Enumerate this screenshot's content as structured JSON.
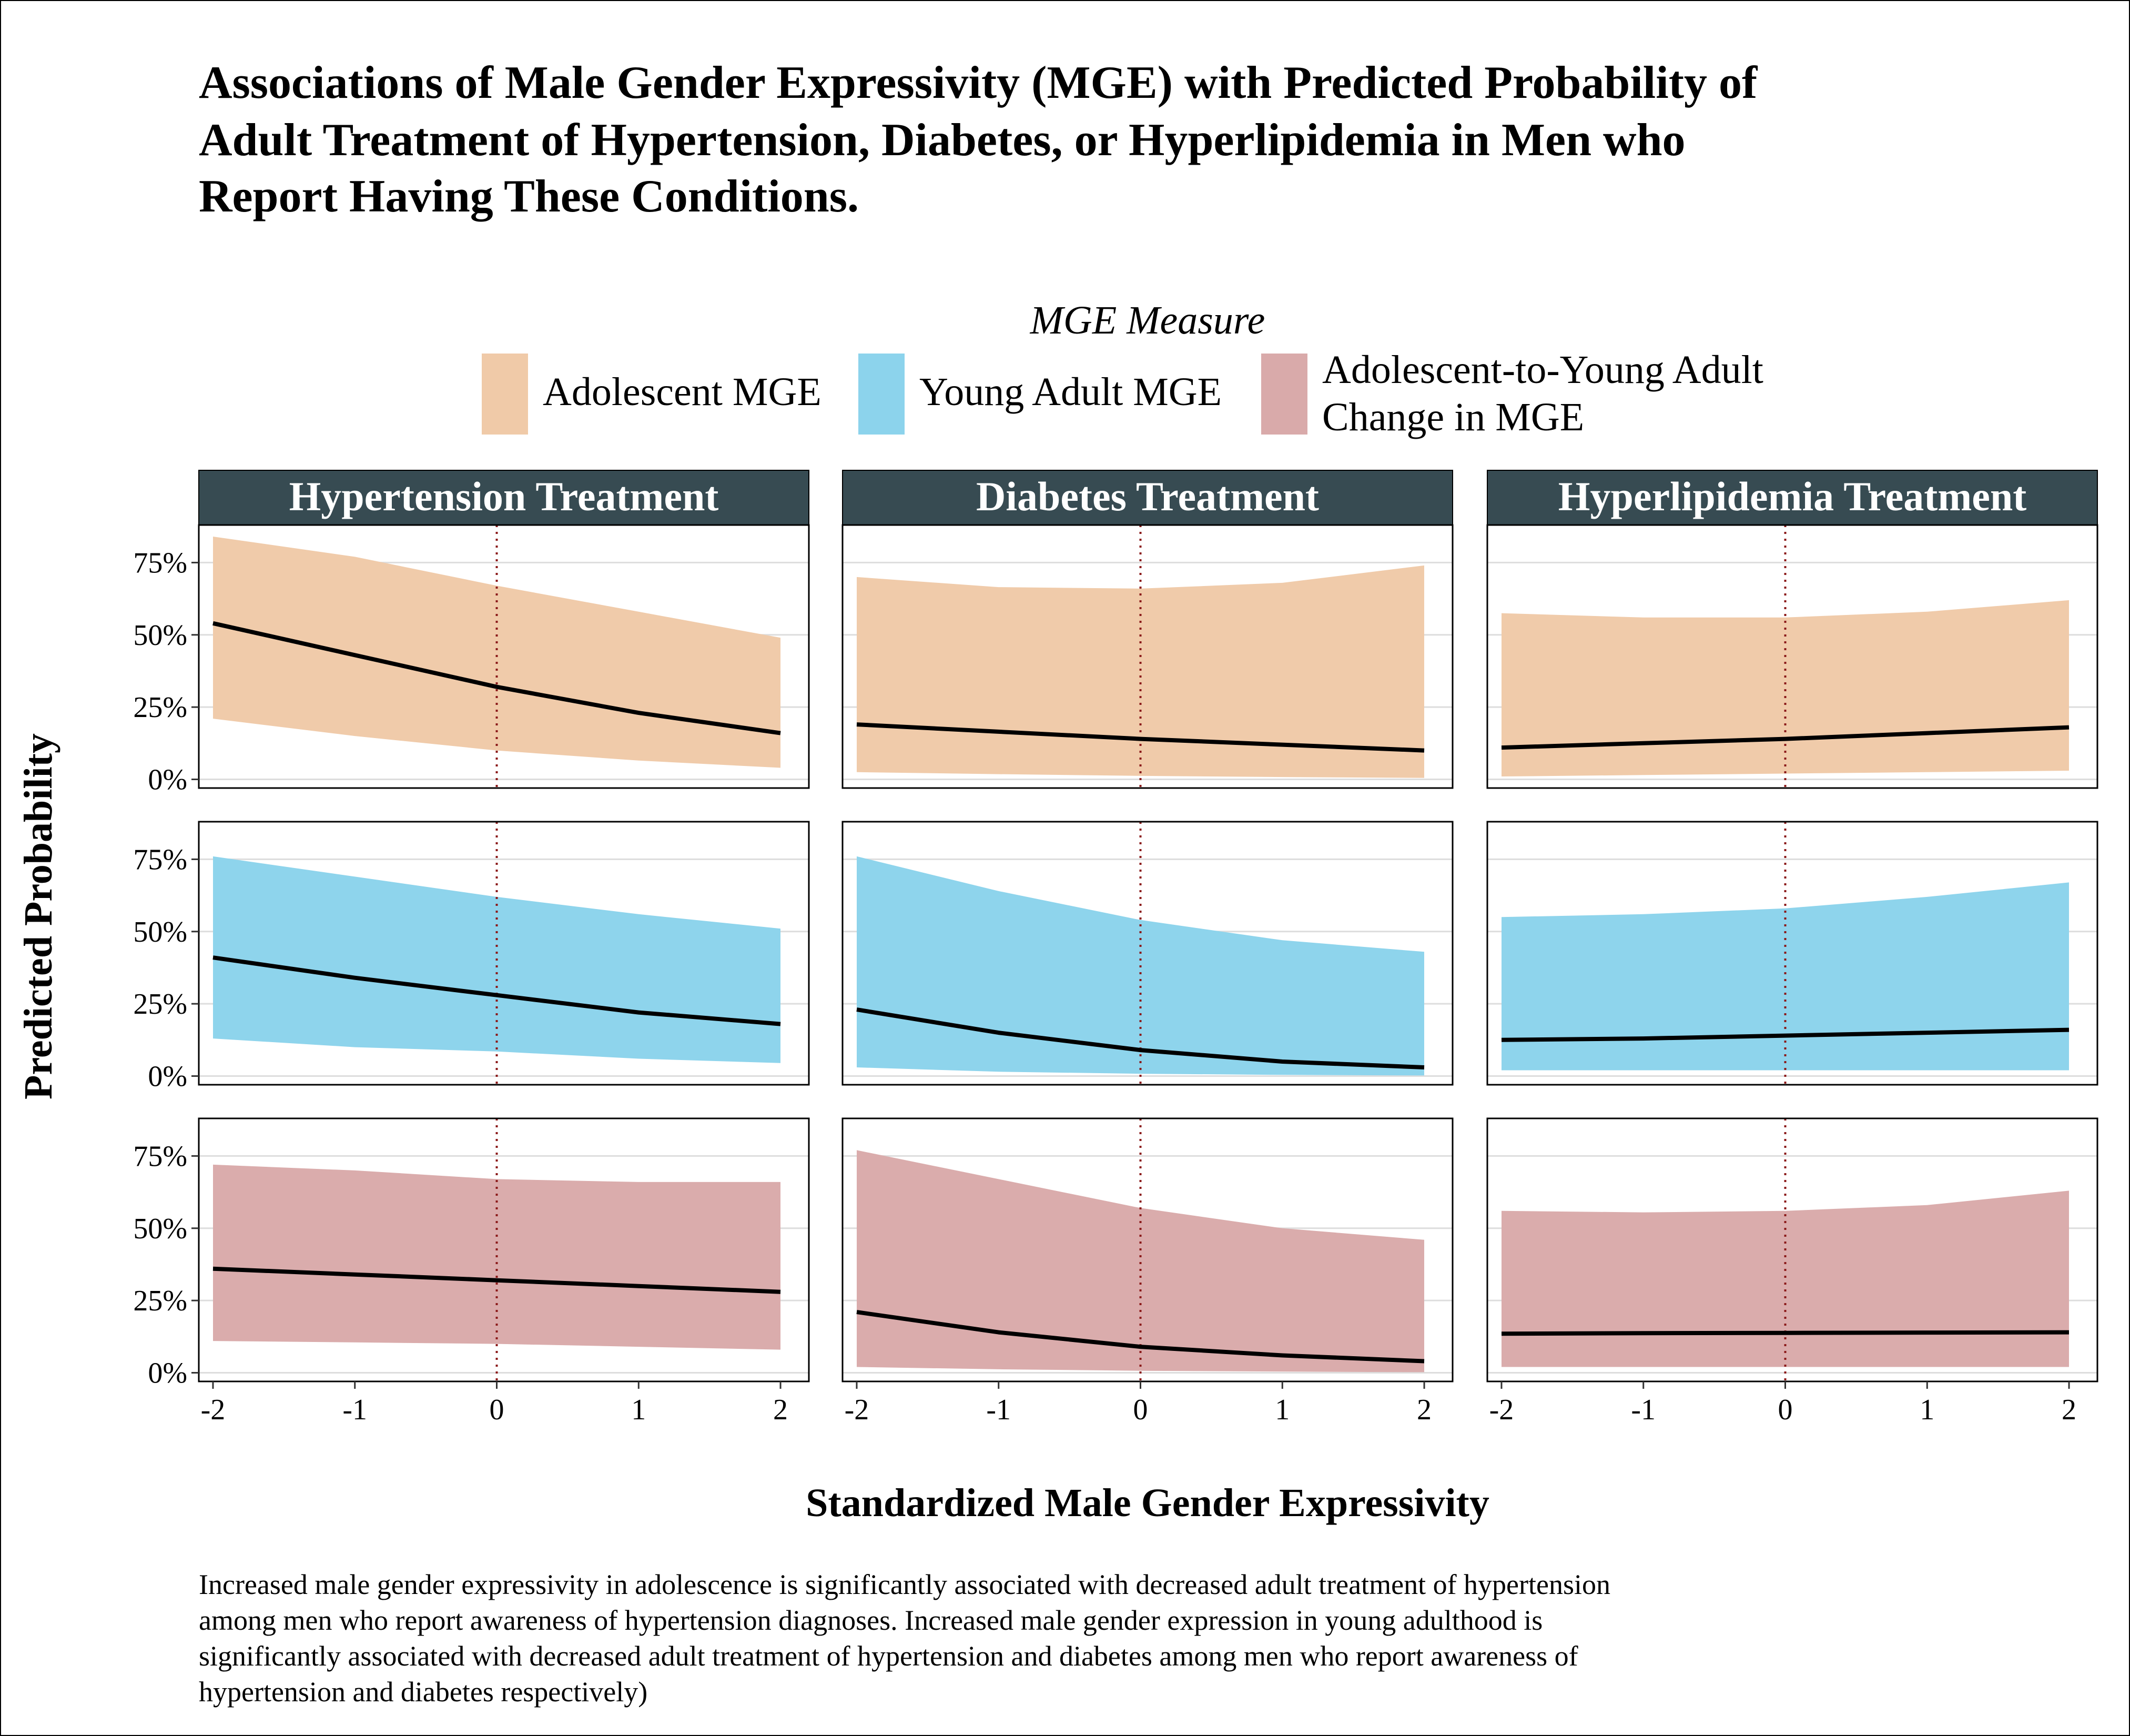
{
  "title_lines": [
    "Associations of Male Gender Expressivity (MGE) with Predicted Probability of",
    "Adult Treatment of Hypertension, Diabetes, or Hyperlipidemia in Men who",
    "Report Having These Conditions."
  ],
  "legend": {
    "title": "MGE Measure",
    "items": [
      {
        "lines": [
          "Adolescent MGE"
        ],
        "color": "#F0CAA8"
      },
      {
        "lines": [
          "Young Adult MGE"
        ],
        "color": "#8CD3EC"
      },
      {
        "lines": [
          "Adolescent-to-Young Adult",
          "Change in MGE"
        ],
        "color": "#D9AAAA"
      }
    ]
  },
  "caption_lines": [
    "Increased male gender expressivity in adolescence is significantly associated with decreased adult treatment of hypertension",
    "among men who report awareness of hypertension diagnoses. Increased male gender expression in young adulthood is",
    "significantly associated with decreased adult treatment of hypertension and diabetes among men who report awareness of",
    "hypertension and diabetes respectively)"
  ],
  "colors": {
    "strip_background": "#374B52",
    "reference_line": "#8B1A1A",
    "gridline": "#DDDDDD",
    "estimate_line": "#000000"
  },
  "chart_data": {
    "type": "area",
    "xlabel": "Standardized Male Gender Expressivity",
    "ylabel": "Predicted Probability",
    "x": [
      -2,
      -1,
      0,
      1,
      2
    ],
    "x_ticks": [
      -2,
      -1,
      0,
      1,
      2
    ],
    "x_tick_labels": [
      "-2",
      "-1",
      "0",
      "1",
      "2"
    ],
    "xlim": [
      -2.1,
      2.2
    ],
    "y_ticks": [
      0,
      0.25,
      0.5,
      0.75
    ],
    "y_tick_labels": [
      "0%",
      "25%",
      "50%",
      "75%"
    ],
    "ylim": [
      -0.03,
      0.88
    ],
    "reference_x": 0,
    "grid": true,
    "legend_position": "top",
    "facet_columns": [
      "Hypertension Treatment",
      "Diabetes Treatment",
      "Hyperlipidemia Treatment"
    ],
    "facet_rows": [
      "Adolescent MGE",
      "Young Adult MGE",
      "Adolescent-to-Young Adult Change in MGE"
    ],
    "panels": [
      [
        {
          "estimate": [
            0.54,
            0.43,
            0.32,
            0.23,
            0.16
          ],
          "lower": [
            0.21,
            0.15,
            0.1,
            0.065,
            0.04
          ],
          "upper": [
            0.84,
            0.77,
            0.67,
            0.58,
            0.49
          ]
        },
        {
          "estimate": [
            0.19,
            0.165,
            0.14,
            0.12,
            0.1
          ],
          "lower": [
            0.025,
            0.018,
            0.012,
            0.008,
            0.005
          ],
          "upper": [
            0.7,
            0.665,
            0.66,
            0.68,
            0.74
          ]
        },
        {
          "estimate": [
            0.11,
            0.125,
            0.14,
            0.16,
            0.18
          ],
          "lower": [
            0.01,
            0.015,
            0.02,
            0.025,
            0.03
          ],
          "upper": [
            0.575,
            0.56,
            0.56,
            0.58,
            0.62
          ]
        }
      ],
      [
        {
          "estimate": [
            0.41,
            0.34,
            0.28,
            0.22,
            0.18
          ],
          "lower": [
            0.13,
            0.1,
            0.085,
            0.06,
            0.045
          ],
          "upper": [
            0.76,
            0.69,
            0.62,
            0.56,
            0.51
          ]
        },
        {
          "estimate": [
            0.23,
            0.15,
            0.09,
            0.05,
            0.03
          ],
          "lower": [
            0.03,
            0.015,
            0.008,
            0.004,
            0.002
          ],
          "upper": [
            0.76,
            0.64,
            0.54,
            0.47,
            0.43
          ]
        },
        {
          "estimate": [
            0.125,
            0.13,
            0.14,
            0.15,
            0.16
          ],
          "lower": [
            0.02,
            0.02,
            0.02,
            0.02,
            0.02
          ],
          "upper": [
            0.55,
            0.56,
            0.58,
            0.62,
            0.67
          ]
        }
      ],
      [
        {
          "estimate": [
            0.36,
            0.34,
            0.32,
            0.3,
            0.28
          ],
          "lower": [
            0.11,
            0.105,
            0.1,
            0.09,
            0.08
          ],
          "upper": [
            0.72,
            0.7,
            0.67,
            0.66,
            0.66
          ]
        },
        {
          "estimate": [
            0.21,
            0.14,
            0.09,
            0.06,
            0.04
          ],
          "lower": [
            0.02,
            0.012,
            0.007,
            0.004,
            0.002
          ],
          "upper": [
            0.77,
            0.67,
            0.57,
            0.5,
            0.46
          ]
        },
        {
          "estimate": [
            0.135,
            0.137,
            0.138,
            0.139,
            0.14
          ],
          "lower": [
            0.02,
            0.02,
            0.02,
            0.02,
            0.02
          ],
          "upper": [
            0.56,
            0.555,
            0.56,
            0.58,
            0.63
          ]
        }
      ]
    ]
  }
}
